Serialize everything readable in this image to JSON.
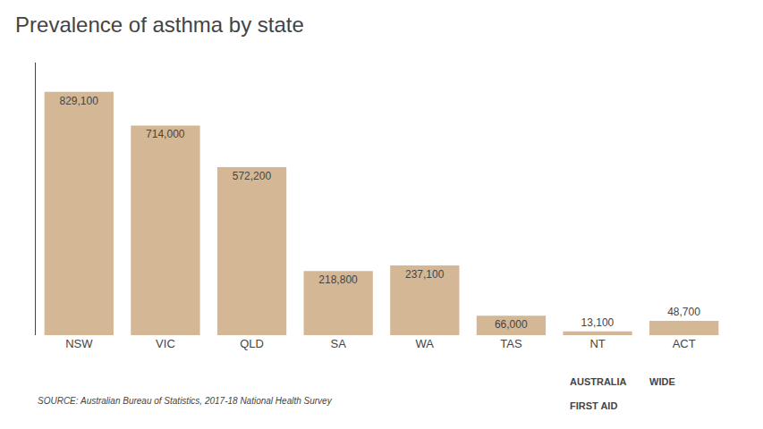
{
  "chart_data": {
    "type": "bar",
    "title": "Prevalence of asthma by state",
    "categories": [
      "NSW",
      "VIC",
      "QLD",
      "SA",
      "WA",
      "TAS",
      "NT",
      "ACT"
    ],
    "values": [
      829100,
      714000,
      572200,
      218800,
      237100,
      66000,
      13100,
      48700
    ],
    "value_labels": [
      "829,100",
      "714,000",
      "572,200",
      "218,800",
      "237,100",
      "66,000",
      "13,100",
      "48,700"
    ],
    "data_labels": true,
    "color": "#D4B896",
    "ylim": [
      0,
      928592
    ],
    "tick_labels": "x",
    "grid": false,
    "annotations": [
      "SOURCE: Australian Bureau of Statistics, 2017-18 National Health Survey",
      "AUSTRALIA",
      "WIDE",
      "FIRST AID"
    ]
  }
}
